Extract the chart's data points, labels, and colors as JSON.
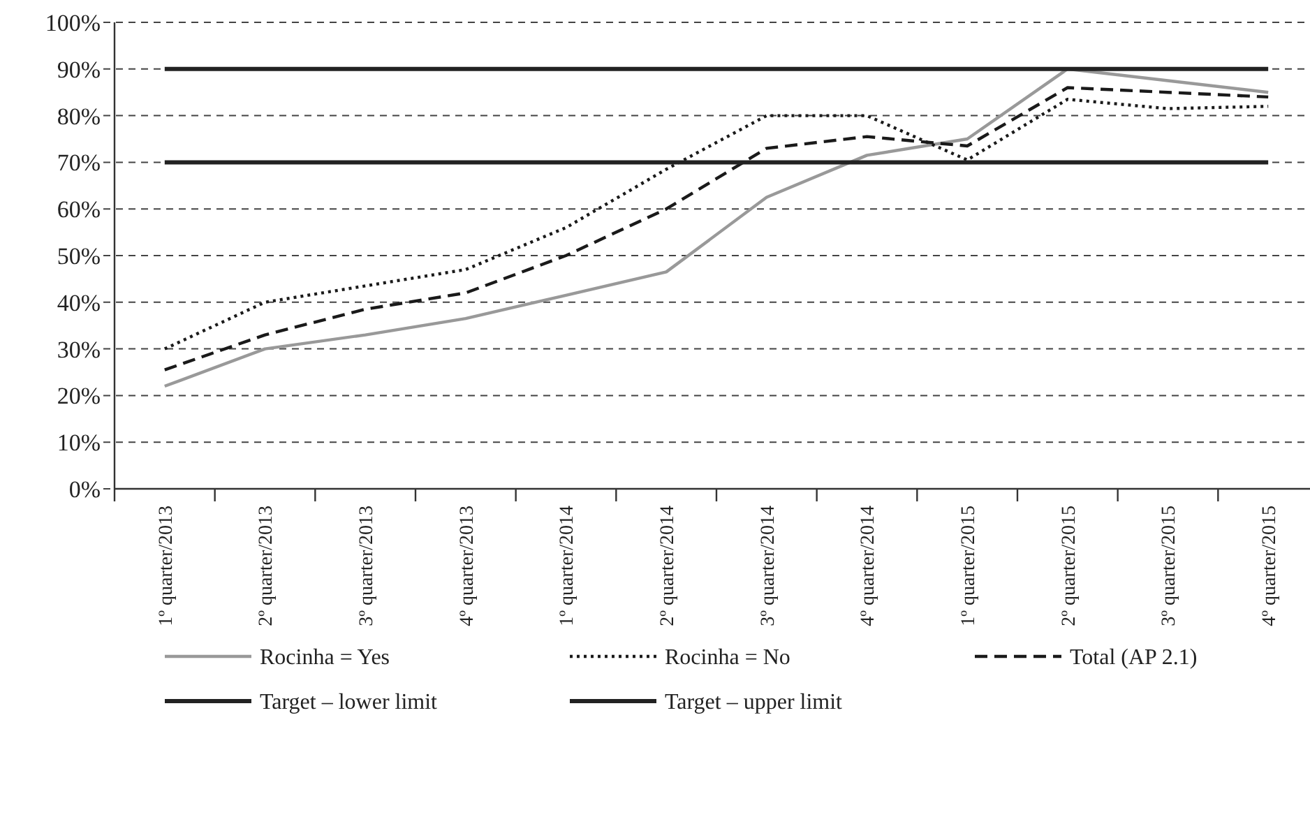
{
  "chart_data": {
    "type": "line",
    "categories": [
      "1º quarter/2013",
      "2º quarter/2013",
      "3º quarter/2013",
      "4º quarter/2013",
      "1º quarter/2014",
      "2º quarter/2014",
      "3º quarter/2014",
      "4º quarter/2014",
      "1º quarter/2015",
      "2º quarter/2015",
      "3º quarter/2015",
      "4º quarter/2015"
    ],
    "series": [
      {
        "name": "Rocinha = Yes",
        "color": "#999999",
        "line_style": "solid",
        "values": [
          22,
          30,
          33,
          36.5,
          41.5,
          46.5,
          62.5,
          71.5,
          75,
          90,
          87.5,
          85
        ]
      },
      {
        "name": "Rocinha = No",
        "color": "#1a1a1a",
        "line_style": "dotted",
        "values": [
          30,
          40,
          43.5,
          47,
          56,
          68.5,
          80,
          80,
          70.5,
          83.5,
          81.5,
          82
        ]
      },
      {
        "name": "Total (AP 2.1)",
        "color": "#1a1a1a",
        "line_style": "dashed",
        "values": [
          25.5,
          33,
          38.5,
          42,
          50,
          60,
          73,
          75.5,
          73.5,
          86,
          85,
          84
        ]
      },
      {
        "name": "Target – lower limit",
        "color": "#222222",
        "line_style": "solid",
        "values": [
          70,
          70,
          70,
          70,
          70,
          70,
          70,
          70,
          70,
          70,
          70,
          70
        ]
      },
      {
        "name": "Target – upper limit",
        "color": "#222222",
        "line_style": "solid",
        "values": [
          90,
          90,
          90,
          90,
          90,
          90,
          90,
          90,
          90,
          90,
          90,
          90
        ]
      }
    ],
    "ylim": [
      0,
      100
    ],
    "yticks": [
      {
        "value": 0,
        "label": "0%"
      },
      {
        "value": 10,
        "label": "10%"
      },
      {
        "value": 20,
        "label": "20%"
      },
      {
        "value": 30,
        "label": "30%"
      },
      {
        "value": 40,
        "label": "40%"
      },
      {
        "value": 50,
        "label": "50%"
      },
      {
        "value": 60,
        "label": "60%"
      },
      {
        "value": 70,
        "label": "70%"
      },
      {
        "value": 80,
        "label": "80%"
      },
      {
        "value": 90,
        "label": "90%"
      },
      {
        "value": 100,
        "label": "100%"
      }
    ],
    "grid": "y",
    "legend": "bottom"
  }
}
